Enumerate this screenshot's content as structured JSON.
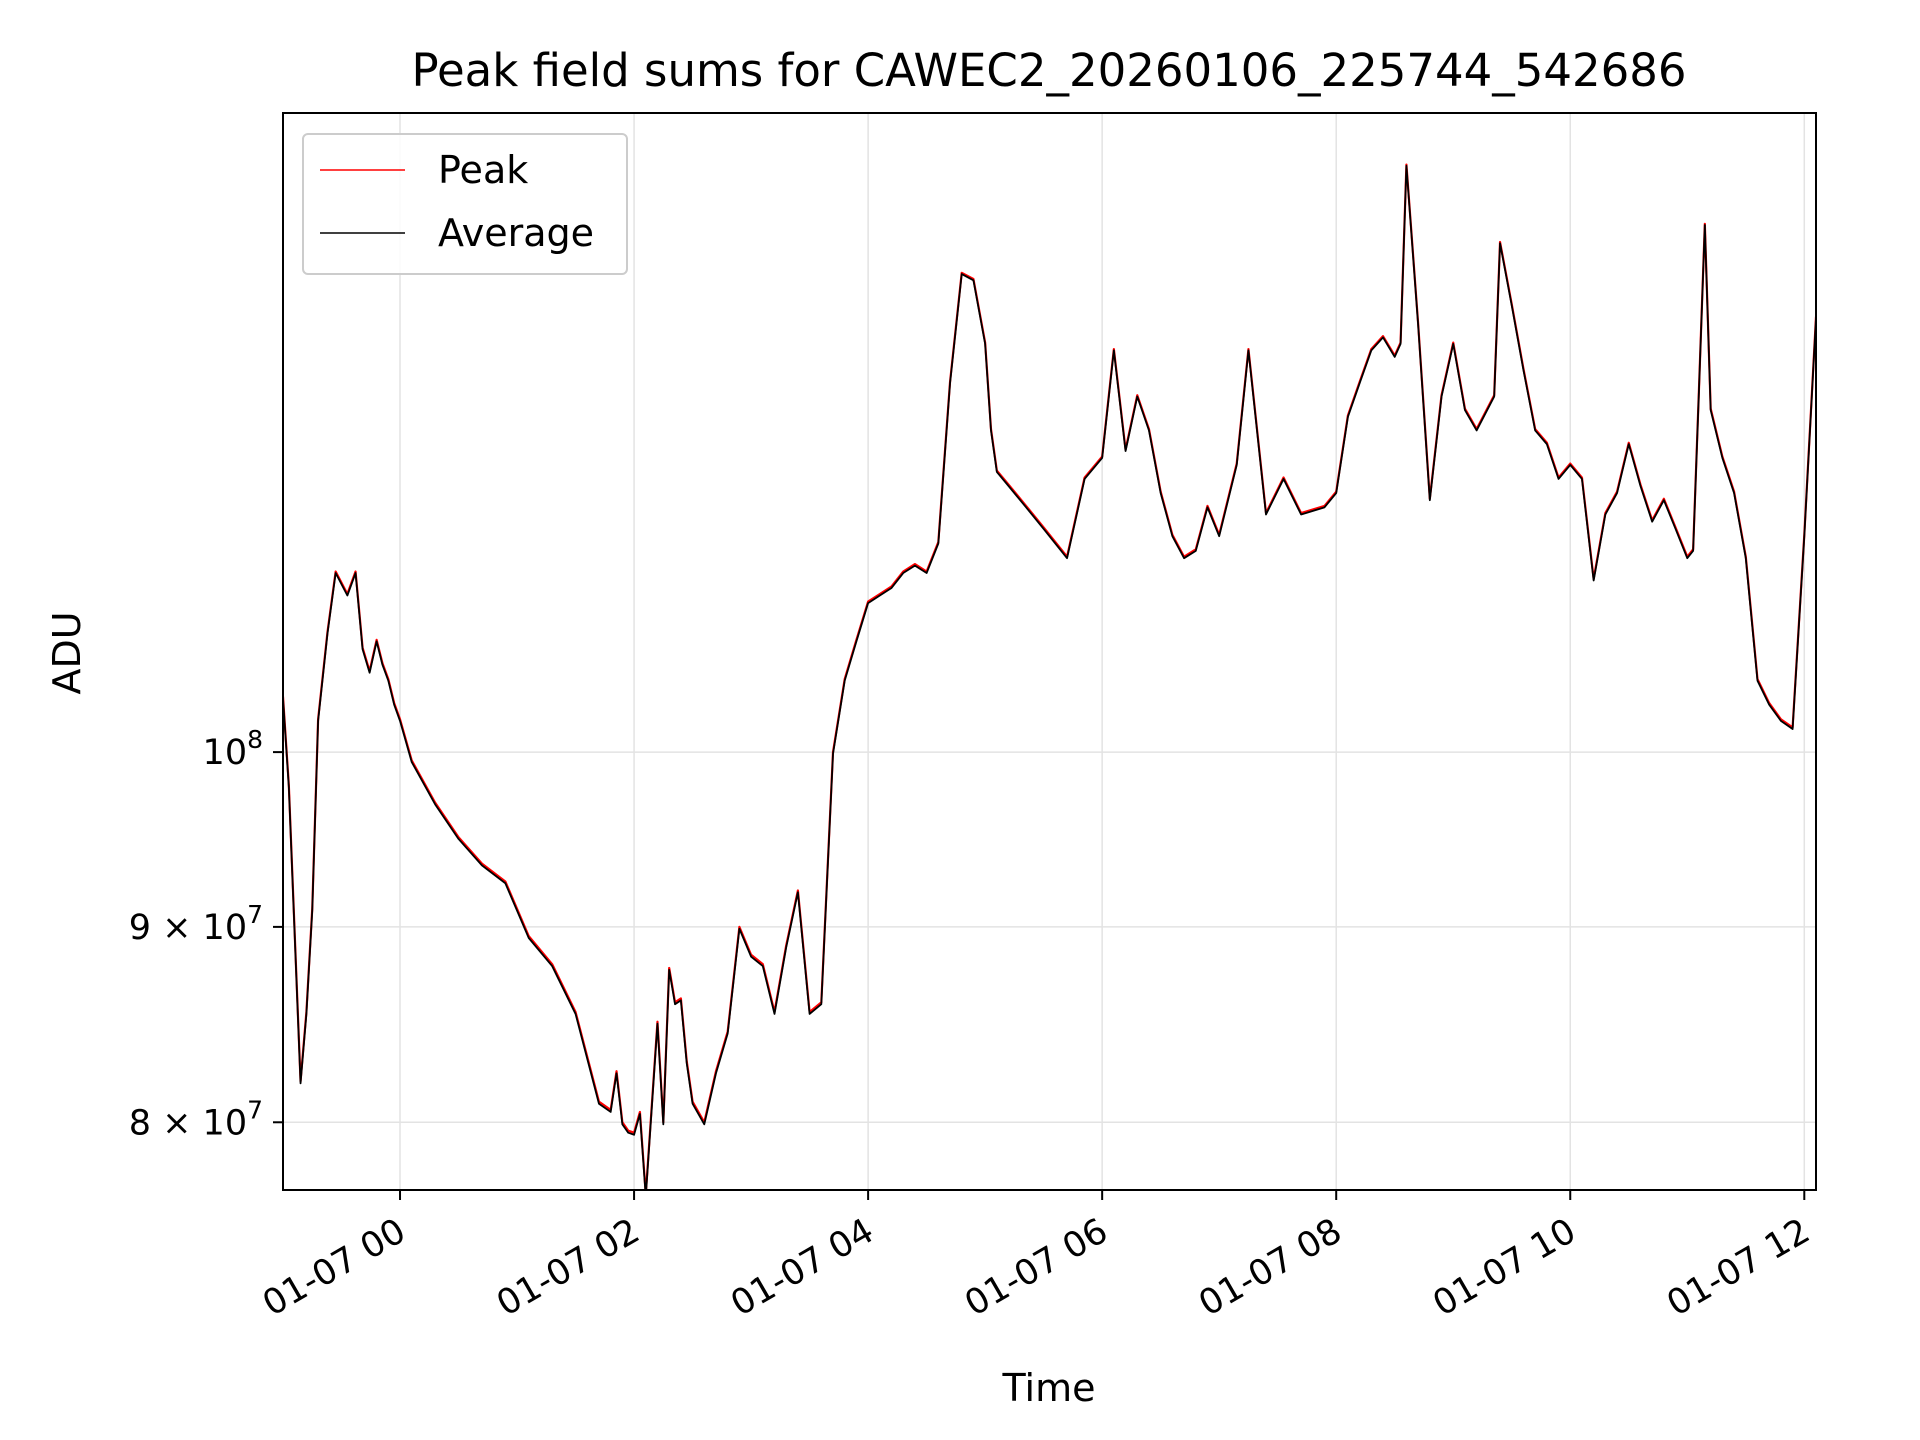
{
  "chart_data": {
    "type": "line",
    "title": "Peak field sums for CAWEC2_20260106_225744_542686",
    "xlabel": "Time",
    "ylabel": "ADU",
    "yscale": "log",
    "grid": true,
    "legend_position": "top-left",
    "x_ticks": [
      "01-07 00",
      "01-07 02",
      "01-07 04",
      "01-07 06",
      "01-07 08",
      "01-07 10",
      "01-07 12"
    ],
    "x_tick_hours": [
      0,
      2,
      4,
      6,
      8,
      10,
      12
    ],
    "x_range_hours": [
      -1.0,
      12.1
    ],
    "x_note": "Hours relative to 2026-01-07 00:00",
    "y_ticks": [
      {
        "label": "8 × 10^7",
        "value": 80000000
      },
      {
        "label": "9 × 10^7",
        "value": 90000000
      },
      {
        "label": "10^8",
        "value": 100000000
      }
    ],
    "y_range": [
      76800000,
      147000000
    ],
    "series": [
      {
        "name": "Peak",
        "color": "#ff0000",
        "x": [
          -1.0,
          -0.95,
          -0.85,
          -0.8,
          -0.75,
          -0.7,
          -0.62,
          -0.55,
          -0.45,
          -0.38,
          -0.32,
          -0.26,
          -0.2,
          -0.15,
          -0.1,
          -0.05,
          0.0,
          0.1,
          0.3,
          0.5,
          0.7,
          0.9,
          1.1,
          1.3,
          1.5,
          1.7,
          1.8,
          1.85,
          1.9,
          1.95,
          2.0,
          2.05,
          2.1,
          2.2,
          2.25,
          2.3,
          2.35,
          2.4,
          2.45,
          2.5,
          2.6,
          2.7,
          2.8,
          2.9,
          3.0,
          3.1,
          3.2,
          3.3,
          3.4,
          3.5,
          3.6,
          3.7,
          3.8,
          3.9,
          4.0,
          4.1,
          4.2,
          4.3,
          4.4,
          4.5,
          4.6,
          4.7,
          4.8,
          4.9,
          5.0,
          5.05,
          5.1,
          5.2,
          5.35,
          5.5,
          5.7,
          5.85,
          6.0,
          6.1,
          6.2,
          6.3,
          6.4,
          6.5,
          6.6,
          6.7,
          6.8,
          6.9,
          7.0,
          7.15,
          7.25,
          7.4,
          7.55,
          7.7,
          7.9,
          8.0,
          8.1,
          8.2,
          8.3,
          8.4,
          8.5,
          8.55,
          8.6,
          8.7,
          8.8,
          8.9,
          9.0,
          9.1,
          9.2,
          9.35,
          9.4,
          9.5,
          9.6,
          9.7,
          9.8,
          9.9,
          10.0,
          10.1,
          10.2,
          10.3,
          10.4,
          10.5,
          10.6,
          10.7,
          10.8,
          10.9,
          11.0,
          11.05,
          11.1,
          11.15,
          11.2,
          11.3,
          11.4,
          11.5,
          11.6,
          11.7,
          11.8,
          11.9,
          12.0,
          12.1
        ],
        "y": [
          103400000,
          98000000,
          82000000,
          85500000,
          91000000,
          102000000,
          107500000,
          111500000,
          110000000,
          111500000,
          106500000,
          105000000,
          107000000,
          105500000,
          104500000,
          103000000,
          102000000,
          99500000,
          97000000,
          95000000,
          93500000,
          92500000,
          89500000,
          88000000,
          85500000,
          81000000,
          80600000,
          82500000,
          80000000,
          79600000,
          79500000,
          80500000,
          76600000,
          85000000,
          80000000,
          87800000,
          86000000,
          86200000,
          83000000,
          81000000,
          80000000,
          82500000,
          84500000,
          90000000,
          88500000,
          88000000,
          85500000,
          89000000,
          92000000,
          85500000,
          86000000,
          100000000,
          104500000,
          107000000,
          109500000,
          110000000,
          110500000,
          111500000,
          112000000,
          111500000,
          113500000,
          125000000,
          133500000,
          133000000,
          128000000,
          121500000,
          118500000,
          117500000,
          116000000,
          114500000,
          112500000,
          118000000,
          119500000,
          127500000,
          120000000,
          124000000,
          121500000,
          117000000,
          114000000,
          112500000,
          113000000,
          116000000,
          114000000,
          119000000,
          127500000,
          115500000,
          118000000,
          115500000,
          116000000,
          117000000,
          122500000,
          125000000,
          127500000,
          128500000,
          127000000,
          128000000,
          142500000,
          129500000,
          116500000,
          124000000,
          128000000,
          123000000,
          121500000,
          124000000,
          136000000,
          131000000,
          126000000,
          121500000,
          120500000,
          118000000,
          119000000,
          118000000,
          111000000,
          115500000,
          117000000,
          120500000,
          117500000,
          115000000,
          116500000,
          114500000,
          112500000,
          113000000,
          124500000,
          137500000,
          123000000,
          119500000,
          117000000,
          112500000,
          104500000,
          103000000,
          102000000,
          101500000,
          114000000,
          130000000
        ]
      },
      {
        "name": "Average",
        "color": "#000000",
        "x": [
          -1.0,
          -0.95,
          -0.85,
          -0.8,
          -0.75,
          -0.7,
          -0.62,
          -0.55,
          -0.45,
          -0.38,
          -0.32,
          -0.26,
          -0.2,
          -0.15,
          -0.1,
          -0.05,
          0.0,
          0.1,
          0.3,
          0.5,
          0.7,
          0.9,
          1.1,
          1.3,
          1.5,
          1.7,
          1.8,
          1.85,
          1.9,
          1.95,
          2.0,
          2.05,
          2.1,
          2.2,
          2.25,
          2.3,
          2.35,
          2.4,
          2.45,
          2.5,
          2.6,
          2.7,
          2.8,
          2.9,
          3.0,
          3.1,
          3.2,
          3.3,
          3.4,
          3.5,
          3.6,
          3.7,
          3.8,
          3.9,
          4.0,
          4.1,
          4.2,
          4.3,
          4.4,
          4.5,
          4.6,
          4.7,
          4.8,
          4.9,
          5.0,
          5.05,
          5.1,
          5.2,
          5.35,
          5.5,
          5.7,
          5.85,
          6.0,
          6.1,
          6.2,
          6.3,
          6.4,
          6.5,
          6.6,
          6.7,
          6.8,
          6.9,
          7.0,
          7.15,
          7.25,
          7.4,
          7.55,
          7.7,
          7.9,
          8.0,
          8.1,
          8.2,
          8.3,
          8.4,
          8.5,
          8.55,
          8.6,
          8.7,
          8.8,
          8.9,
          9.0,
          9.1,
          9.2,
          9.35,
          9.4,
          9.5,
          9.6,
          9.7,
          9.8,
          9.9,
          10.0,
          10.1,
          10.2,
          10.3,
          10.4,
          10.5,
          10.6,
          10.7,
          10.8,
          10.9,
          11.0,
          11.05,
          11.1,
          11.15,
          11.2,
          11.3,
          11.4,
          11.5,
          11.6,
          11.7,
          11.8,
          11.9,
          12.0,
          12.1
        ],
        "y": [
          103300000,
          97900000,
          81900000,
          85400000,
          90900000,
          101900000,
          107400000,
          111400000,
          109900000,
          111400000,
          106400000,
          104900000,
          106900000,
          105400000,
          104400000,
          102900000,
          101900000,
          99400000,
          96900000,
          94900000,
          93400000,
          92400000,
          89400000,
          87900000,
          85400000,
          80900000,
          80500000,
          82400000,
          79900000,
          79500000,
          79400000,
          80400000,
          76500000,
          84900000,
          79900000,
          87700000,
          85900000,
          86100000,
          82900000,
          80900000,
          79900000,
          82400000,
          84400000,
          89900000,
          88400000,
          87900000,
          85400000,
          88900000,
          91900000,
          85400000,
          85900000,
          99900000,
          104400000,
          106900000,
          109400000,
          109900000,
          110400000,
          111400000,
          111900000,
          111400000,
          113400000,
          124900000,
          133400000,
          132900000,
          127900000,
          121400000,
          118400000,
          117400000,
          115900000,
          114400000,
          112400000,
          117900000,
          119400000,
          127400000,
          119900000,
          123900000,
          121400000,
          116900000,
          113900000,
          112400000,
          112900000,
          115900000,
          113900000,
          118900000,
          127400000,
          115400000,
          117900000,
          115400000,
          115900000,
          116900000,
          122400000,
          124900000,
          127400000,
          128400000,
          126900000,
          127900000,
          142400000,
          129400000,
          116400000,
          123900000,
          127900000,
          122900000,
          121400000,
          123900000,
          135900000,
          130900000,
          125900000,
          121400000,
          120400000,
          117900000,
          118900000,
          117900000,
          110900000,
          115400000,
          116900000,
          120400000,
          117400000,
          114900000,
          116400000,
          114400000,
          112400000,
          112900000,
          124400000,
          137400000,
          122900000,
          119400000,
          116900000,
          112400000,
          104400000,
          102900000,
          101900000,
          101400000,
          113900000,
          129900000
        ]
      }
    ]
  },
  "legend": [
    {
      "label": "Peak",
      "color": "#ff0000"
    },
    {
      "label": "Average",
      "color": "#000000"
    }
  ]
}
